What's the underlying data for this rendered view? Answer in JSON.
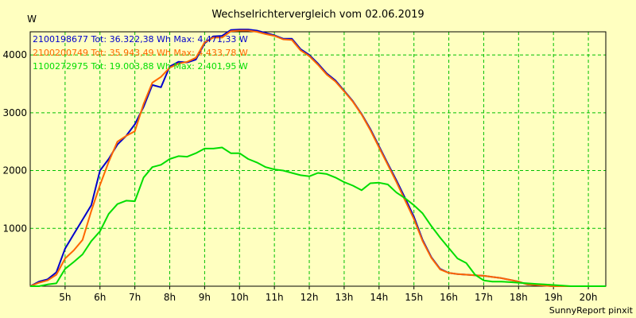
{
  "chart_data": {
    "type": "line",
    "title": "Wechselrichtervergleich vom 02.06.2019",
    "ylabel": "W",
    "xlabel": "",
    "xlim": [
      4.0,
      20.5
    ],
    "ylim": [
      0,
      4400
    ],
    "x_ticks": [
      5,
      6,
      7,
      8,
      9,
      10,
      11,
      12,
      13,
      14,
      15,
      16,
      17,
      18,
      19,
      20
    ],
    "x_tick_labels": [
      "5h",
      "6h",
      "7h",
      "8h",
      "9h",
      "10h",
      "11h",
      "12h",
      "13h",
      "14h",
      "15h",
      "16h",
      "17h",
      "18h",
      "19h",
      "20h"
    ],
    "y_ticks": [
      1000,
      2000,
      3000,
      4000
    ],
    "y_tick_labels": [
      "1000",
      "2000",
      "3000",
      "4000"
    ],
    "grid": true,
    "background_color": "#ffffc0",
    "grid_color": "#00c000",
    "series": [
      {
        "name": "2100198677 Tot: 36.322,38 Wh Max: 4.471,33 W",
        "color": "#0000cc",
        "x": [
          4.0,
          4.25,
          4.5,
          4.75,
          5.0,
          5.25,
          5.5,
          5.75,
          6.0,
          6.25,
          6.5,
          6.75,
          7.0,
          7.25,
          7.5,
          7.75,
          8.0,
          8.25,
          8.5,
          8.75,
          9.0,
          9.25,
          9.5,
          9.75,
          10.0,
          10.25,
          10.5,
          10.75,
          11.0,
          11.25,
          11.5,
          11.75,
          12.0,
          12.25,
          12.5,
          12.75,
          13.0,
          13.25,
          13.5,
          13.75,
          14.0,
          14.25,
          14.5,
          14.75,
          15.0,
          15.25,
          15.5,
          15.75,
          16.0,
          16.25,
          16.5,
          16.75,
          17.0,
          17.25,
          17.5,
          17.75,
          18.0,
          18.25,
          18.5,
          18.75,
          19.0,
          19.25,
          19.5,
          19.75,
          20.0,
          20.25,
          20.5
        ],
        "y": [
          0,
          80,
          120,
          240,
          650,
          900,
          1150,
          1400,
          2000,
          2200,
          2450,
          2600,
          2800,
          3100,
          3480,
          3440,
          3800,
          3880,
          3870,
          3920,
          4200,
          4320,
          4330,
          4430,
          4440,
          4440,
          4420,
          4380,
          4340,
          4280,
          4280,
          4100,
          4000,
          3850,
          3680,
          3560,
          3380,
          3200,
          2980,
          2720,
          2420,
          2120,
          1830,
          1520,
          1200,
          800,
          500,
          300,
          230,
          210,
          200,
          190,
          180,
          160,
          140,
          110,
          80,
          30,
          20,
          10,
          0,
          0,
          0,
          0,
          0,
          0,
          0
        ]
      },
      {
        "name": "2100200749 Tot: 35.943,49 Wh Max: 4.433,78 W",
        "color": "#ff6600",
        "x": [
          4.0,
          4.25,
          4.5,
          4.75,
          5.0,
          5.25,
          5.5,
          5.75,
          6.0,
          6.25,
          6.5,
          6.75,
          7.0,
          7.25,
          7.5,
          7.75,
          8.0,
          8.25,
          8.5,
          8.75,
          9.0,
          9.25,
          9.5,
          9.75,
          10.0,
          10.25,
          10.5,
          10.75,
          11.0,
          11.25,
          11.5,
          11.75,
          12.0,
          12.25,
          12.5,
          12.75,
          13.0,
          13.25,
          13.5,
          13.75,
          14.0,
          14.25,
          14.5,
          14.75,
          15.0,
          15.25,
          15.5,
          15.75,
          16.0,
          16.25,
          16.5,
          16.75,
          17.0,
          17.25,
          17.5,
          17.75,
          18.0,
          18.25,
          18.5,
          18.75,
          19.0,
          19.25,
          19.5,
          19.75,
          20.0,
          20.25,
          20.5
        ],
        "y": [
          0,
          60,
          100,
          200,
          480,
          620,
          800,
          1300,
          1750,
          2150,
          2500,
          2600,
          2680,
          3150,
          3520,
          3620,
          3780,
          3850,
          3880,
          3950,
          4220,
          4300,
          4300,
          4410,
          4420,
          4420,
          4400,
          4360,
          4330,
          4270,
          4260,
          4080,
          3980,
          3830,
          3660,
          3540,
          3370,
          3190,
          2970,
          2700,
          2400,
          2100,
          1800,
          1480,
          1160,
          780,
          490,
          290,
          230,
          210,
          200,
          190,
          180,
          160,
          140,
          110,
          80,
          30,
          20,
          10,
          0,
          0,
          0,
          0,
          0,
          0,
          0
        ]
      },
      {
        "name": "1100272975 Tot: 19.003,88 Wh Max: 2.401,95 W",
        "color": "#00dd00",
        "x": [
          4.0,
          4.25,
          4.5,
          4.75,
          5.0,
          5.25,
          5.5,
          5.75,
          6.0,
          6.25,
          6.5,
          6.75,
          7.0,
          7.25,
          7.5,
          7.75,
          8.0,
          8.25,
          8.5,
          8.75,
          9.0,
          9.25,
          9.5,
          9.75,
          10.0,
          10.25,
          10.5,
          10.75,
          11.0,
          11.25,
          11.5,
          11.75,
          12.0,
          12.25,
          12.5,
          12.75,
          13.0,
          13.25,
          13.5,
          13.75,
          14.0,
          14.25,
          14.5,
          14.75,
          15.0,
          15.25,
          15.5,
          15.75,
          16.0,
          16.25,
          16.5,
          16.75,
          17.0,
          17.25,
          17.5,
          17.75,
          18.0,
          18.25,
          18.5,
          18.75,
          19.0,
          19.25,
          19.5,
          19.75,
          20.0,
          20.25,
          20.5
        ],
        "y": [
          0,
          0,
          30,
          50,
          300,
          420,
          550,
          780,
          950,
          1250,
          1420,
          1480,
          1470,
          1880,
          2060,
          2100,
          2200,
          2250,
          2240,
          2300,
          2380,
          2380,
          2400,
          2300,
          2300,
          2200,
          2140,
          2060,
          2020,
          2000,
          1960,
          1920,
          1900,
          1960,
          1940,
          1880,
          1800,
          1740,
          1660,
          1780,
          1790,
          1760,
          1620,
          1520,
          1400,
          1260,
          1040,
          840,
          660,
          480,
          400,
          200,
          100,
          80,
          80,
          70,
          60,
          50,
          40,
          30,
          20,
          10,
          0,
          0,
          0,
          0,
          0
        ]
      }
    ]
  },
  "credit": "SunnyReport pinxit"
}
